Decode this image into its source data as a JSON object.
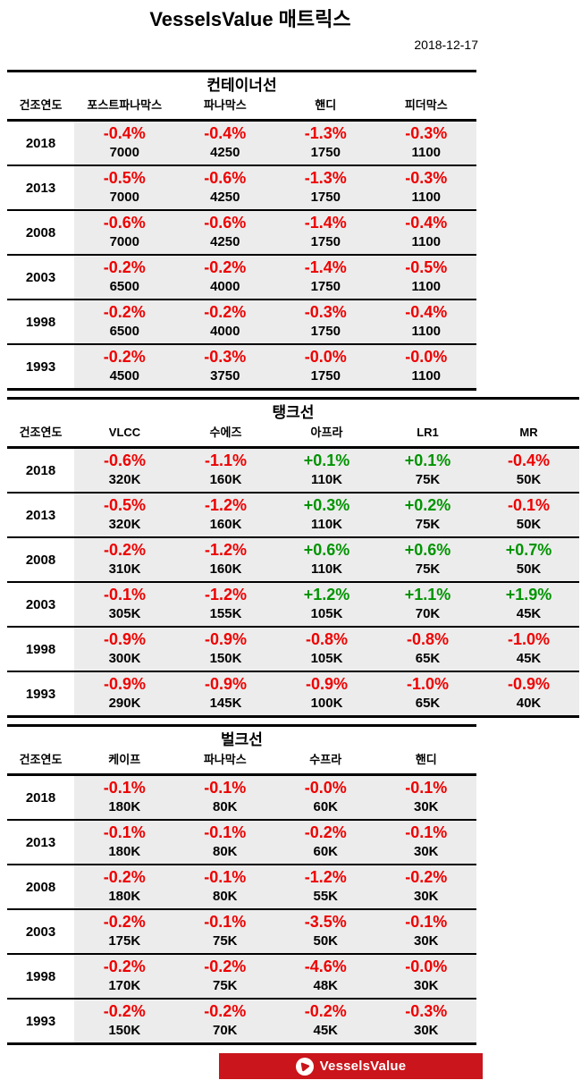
{
  "header": {
    "title": "VesselsValue 매트릭스",
    "date": "2018-12-17"
  },
  "colors": {
    "negative": "#ee0000",
    "positive": "#009400",
    "cell_bg": "#ececec",
    "brand_red": "#c9151b"
  },
  "footer": {
    "logo_text": "VesselsValue",
    "logo_icon": "vesselsvalue-play-triangle-icon"
  },
  "chart_data": [
    {
      "type": "table",
      "key": "container",
      "title": "컨테이너선",
      "wide": false,
      "columns": [
        "건조연도",
        "포스트파나막스",
        "파나막스",
        "핸디",
        "피더막스"
      ],
      "rows": [
        {
          "year": "2018",
          "cells": [
            {
              "change": "-0.4%",
              "size": "7000",
              "trend": "neg"
            },
            {
              "change": "-0.4%",
              "size": "4250",
              "trend": "neg"
            },
            {
              "change": "-1.3%",
              "size": "1750",
              "trend": "neg"
            },
            {
              "change": "-0.3%",
              "size": "1100",
              "trend": "neg"
            }
          ]
        },
        {
          "year": "2013",
          "cells": [
            {
              "change": "-0.5%",
              "size": "7000",
              "trend": "neg"
            },
            {
              "change": "-0.6%",
              "size": "4250",
              "trend": "neg"
            },
            {
              "change": "-1.3%",
              "size": "1750",
              "trend": "neg"
            },
            {
              "change": "-0.3%",
              "size": "1100",
              "trend": "neg"
            }
          ]
        },
        {
          "year": "2008",
          "cells": [
            {
              "change": "-0.6%",
              "size": "7000",
              "trend": "neg"
            },
            {
              "change": "-0.6%",
              "size": "4250",
              "trend": "neg"
            },
            {
              "change": "-1.4%",
              "size": "1750",
              "trend": "neg"
            },
            {
              "change": "-0.4%",
              "size": "1100",
              "trend": "neg"
            }
          ]
        },
        {
          "year": "2003",
          "cells": [
            {
              "change": "-0.2%",
              "size": "6500",
              "trend": "neg"
            },
            {
              "change": "-0.2%",
              "size": "4000",
              "trend": "neg"
            },
            {
              "change": "-1.4%",
              "size": "1750",
              "trend": "neg"
            },
            {
              "change": "-0.5%",
              "size": "1100",
              "trend": "neg"
            }
          ]
        },
        {
          "year": "1998",
          "cells": [
            {
              "change": "-0.2%",
              "size": "6500",
              "trend": "neg"
            },
            {
              "change": "-0.2%",
              "size": "4000",
              "trend": "neg"
            },
            {
              "change": "-0.3%",
              "size": "1750",
              "trend": "neg"
            },
            {
              "change": "-0.4%",
              "size": "1100",
              "trend": "neg"
            }
          ]
        },
        {
          "year": "1993",
          "cells": [
            {
              "change": "-0.2%",
              "size": "4500",
              "trend": "neg"
            },
            {
              "change": "-0.3%",
              "size": "3750",
              "trend": "neg"
            },
            {
              "change": "-0.0%",
              "size": "1750",
              "trend": "neg"
            },
            {
              "change": "-0.0%",
              "size": "1100",
              "trend": "neg"
            }
          ]
        }
      ]
    },
    {
      "type": "table",
      "key": "tanker",
      "title": "탱크선",
      "wide": true,
      "columns": [
        "건조연도",
        "VLCC",
        "수에즈",
        "아프라",
        "LR1",
        "MR"
      ],
      "rows": [
        {
          "year": "2018",
          "cells": [
            {
              "change": "-0.6%",
              "size": "320K",
              "trend": "neg"
            },
            {
              "change": "-1.1%",
              "size": "160K",
              "trend": "neg"
            },
            {
              "change": "+0.1%",
              "size": "110K",
              "trend": "pos"
            },
            {
              "change": "+0.1%",
              "size": "75K",
              "trend": "pos"
            },
            {
              "change": "-0.4%",
              "size": "50K",
              "trend": "neg"
            }
          ]
        },
        {
          "year": "2013",
          "cells": [
            {
              "change": "-0.5%",
              "size": "320K",
              "trend": "neg"
            },
            {
              "change": "-1.2%",
              "size": "160K",
              "trend": "neg"
            },
            {
              "change": "+0.3%",
              "size": "110K",
              "trend": "pos"
            },
            {
              "change": "+0.2%",
              "size": "75K",
              "trend": "pos"
            },
            {
              "change": "-0.1%",
              "size": "50K",
              "trend": "neg"
            }
          ]
        },
        {
          "year": "2008",
          "cells": [
            {
              "change": "-0.2%",
              "size": "310K",
              "trend": "neg"
            },
            {
              "change": "-1.2%",
              "size": "160K",
              "trend": "neg"
            },
            {
              "change": "+0.6%",
              "size": "110K",
              "trend": "pos"
            },
            {
              "change": "+0.6%",
              "size": "75K",
              "trend": "pos"
            },
            {
              "change": "+0.7%",
              "size": "50K",
              "trend": "pos"
            }
          ]
        },
        {
          "year": "2003",
          "cells": [
            {
              "change": "-0.1%",
              "size": "305K",
              "trend": "neg"
            },
            {
              "change": "-1.2%",
              "size": "155K",
              "trend": "neg"
            },
            {
              "change": "+1.2%",
              "size": "105K",
              "trend": "pos"
            },
            {
              "change": "+1.1%",
              "size": "70K",
              "trend": "pos"
            },
            {
              "change": "+1.9%",
              "size": "45K",
              "trend": "pos"
            }
          ]
        },
        {
          "year": "1998",
          "cells": [
            {
              "change": "-0.9%",
              "size": "300K",
              "trend": "neg"
            },
            {
              "change": "-0.9%",
              "size": "150K",
              "trend": "neg"
            },
            {
              "change": "-0.8%",
              "size": "105K",
              "trend": "neg"
            },
            {
              "change": "-0.8%",
              "size": "65K",
              "trend": "neg"
            },
            {
              "change": "-1.0%",
              "size": "45K",
              "trend": "neg"
            }
          ]
        },
        {
          "year": "1993",
          "cells": [
            {
              "change": "-0.9%",
              "size": "290K",
              "trend": "neg"
            },
            {
              "change": "-0.9%",
              "size": "145K",
              "trend": "neg"
            },
            {
              "change": "-0.9%",
              "size": "100K",
              "trend": "neg"
            },
            {
              "change": "-1.0%",
              "size": "65K",
              "trend": "neg"
            },
            {
              "change": "-0.9%",
              "size": "40K",
              "trend": "neg"
            }
          ]
        }
      ]
    },
    {
      "type": "table",
      "key": "bulker",
      "title": "벌크선",
      "wide": false,
      "columns": [
        "건조연도",
        "케이프",
        "파나막스",
        "수프라",
        "핸디"
      ],
      "rows": [
        {
          "year": "2018",
          "cells": [
            {
              "change": "-0.1%",
              "size": "180K",
              "trend": "neg"
            },
            {
              "change": "-0.1%",
              "size": "80K",
              "trend": "neg"
            },
            {
              "change": "-0.0%",
              "size": "60K",
              "trend": "neg"
            },
            {
              "change": "-0.1%",
              "size": "30K",
              "trend": "neg"
            }
          ]
        },
        {
          "year": "2013",
          "cells": [
            {
              "change": "-0.1%",
              "size": "180K",
              "trend": "neg"
            },
            {
              "change": "-0.1%",
              "size": "80K",
              "trend": "neg"
            },
            {
              "change": "-0.2%",
              "size": "60K",
              "trend": "neg"
            },
            {
              "change": "-0.1%",
              "size": "30K",
              "trend": "neg"
            }
          ]
        },
        {
          "year": "2008",
          "cells": [
            {
              "change": "-0.2%",
              "size": "180K",
              "trend": "neg"
            },
            {
              "change": "-0.1%",
              "size": "80K",
              "trend": "neg"
            },
            {
              "change": "-1.2%",
              "size": "55K",
              "trend": "neg"
            },
            {
              "change": "-0.2%",
              "size": "30K",
              "trend": "neg"
            }
          ]
        },
        {
          "year": "2003",
          "cells": [
            {
              "change": "-0.2%",
              "size": "175K",
              "trend": "neg"
            },
            {
              "change": "-0.1%",
              "size": "75K",
              "trend": "neg"
            },
            {
              "change": "-3.5%",
              "size": "50K",
              "trend": "neg"
            },
            {
              "change": "-0.1%",
              "size": "30K",
              "trend": "neg"
            }
          ]
        },
        {
          "year": "1998",
          "cells": [
            {
              "change": "-0.2%",
              "size": "170K",
              "trend": "neg"
            },
            {
              "change": "-0.2%",
              "size": "75K",
              "trend": "neg"
            },
            {
              "change": "-4.6%",
              "size": "48K",
              "trend": "neg"
            },
            {
              "change": "-0.0%",
              "size": "30K",
              "trend": "neg"
            }
          ]
        },
        {
          "year": "1993",
          "cells": [
            {
              "change": "-0.2%",
              "size": "150K",
              "trend": "neg"
            },
            {
              "change": "-0.2%",
              "size": "70K",
              "trend": "neg"
            },
            {
              "change": "-0.2%",
              "size": "45K",
              "trend": "neg"
            },
            {
              "change": "-0.3%",
              "size": "30K",
              "trend": "neg"
            }
          ]
        }
      ]
    }
  ]
}
